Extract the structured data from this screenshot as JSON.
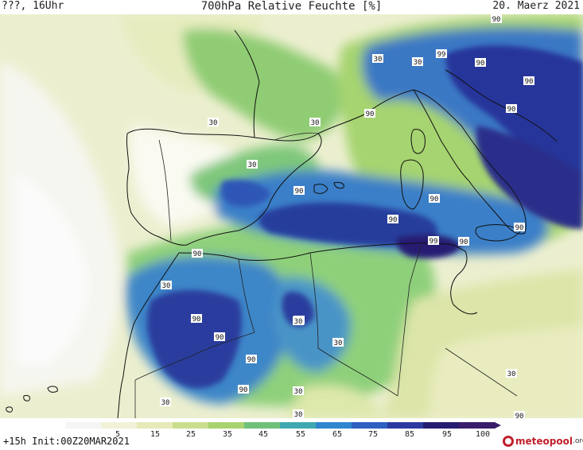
{
  "header": {
    "left": "???, 16Uhr",
    "title": "700hPa Relative Feuchte [%]",
    "date": "20. Maerz 2021"
  },
  "contour_labels": [
    "90",
    "30",
    "30",
    "30",
    "90",
    "99",
    "90",
    "90",
    "30",
    "30",
    "30",
    "30",
    "90",
    "90",
    "90",
    "90",
    "99",
    "90",
    "90",
    "90",
    "30",
    "90",
    "90",
    "90",
    "90",
    "90",
    "30",
    "30",
    "30",
    "90",
    "30"
  ],
  "legend": {
    "ticks": [
      "5",
      "15",
      "25",
      "35",
      "45",
      "55",
      "65",
      "75",
      "85",
      "95",
      "100"
    ],
    "colors": [
      "#f5f5f5",
      "#f1f1d8",
      "#e6eab9",
      "#c9de8c",
      "#a8d36f",
      "#6fc17a",
      "#3fa8b0",
      "#2f86cf",
      "#2f5fc0",
      "#2c3aa0",
      "#241d70",
      "#3a1c6a"
    ]
  },
  "footer": {
    "init": "+15h Init:00Z20MAR2021",
    "logo_main": "meteopool",
    "logo_suffix": ".org"
  }
}
